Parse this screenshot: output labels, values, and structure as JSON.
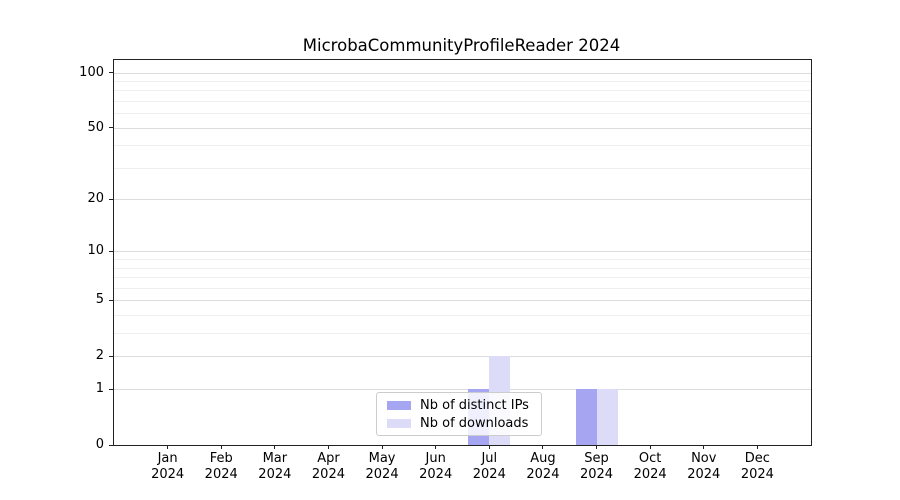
{
  "chart_data": {
    "type": "bar",
    "title": "MicrobaCommunityProfileReader 2024",
    "categories": [
      "Jan 2024",
      "Feb 2024",
      "Mar 2024",
      "Apr 2024",
      "May 2024",
      "Jun 2024",
      "Jul 2024",
      "Aug 2024",
      "Sep 2024",
      "Oct 2024",
      "Nov 2024",
      "Dec 2024"
    ],
    "series": [
      {
        "name": "Nb of distinct IPs",
        "color": "#a5a5f2",
        "values": [
          0,
          0,
          0,
          0,
          0,
          0,
          1,
          0,
          1,
          0,
          0,
          0
        ]
      },
      {
        "name": "Nb of downloads",
        "color": "#dcdcf8",
        "values": [
          0,
          0,
          0,
          0,
          0,
          0,
          2,
          0,
          1,
          0,
          0,
          0
        ]
      }
    ],
    "y_scale": "log1p",
    "ylim": [
      0,
      117
    ],
    "y_major_ticks": [
      0,
      1,
      2,
      5,
      10,
      20,
      50,
      100
    ],
    "y_minor_ticks": [
      3,
      4,
      6,
      7,
      8,
      9,
      30,
      40,
      60,
      70,
      80,
      90
    ],
    "grid": true,
    "legend_position": "lower center",
    "colors": {
      "major_grid": "#dcdcdc",
      "minor_grid": "#efefef",
      "spine": "#222222",
      "text": "#000000",
      "background": "#ffffff"
    }
  }
}
